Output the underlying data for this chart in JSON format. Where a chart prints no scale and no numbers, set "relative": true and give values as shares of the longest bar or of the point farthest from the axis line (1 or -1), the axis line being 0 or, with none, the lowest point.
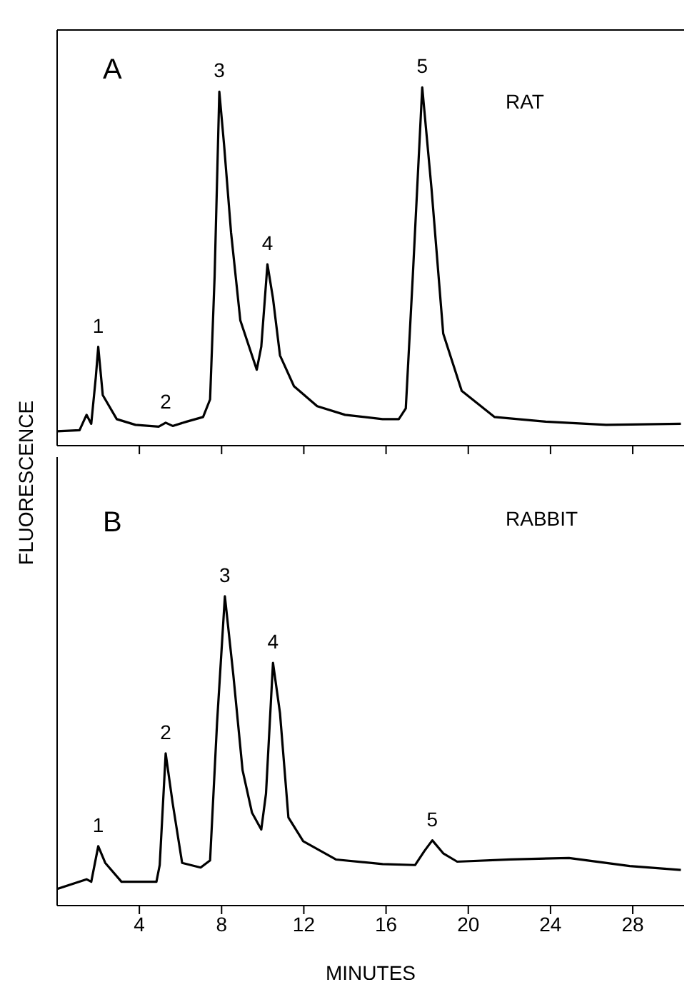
{
  "chart_data": [
    {
      "type": "line",
      "relative": true,
      "ylabel": "FLUORESCENCE",
      "xlim": [
        0,
        30.5
      ],
      "xticks": [
        {
          "value": 4,
          "label": null
        },
        {
          "value": 8,
          "label": null
        },
        {
          "value": 12,
          "label": null
        },
        {
          "value": 16,
          "label": null
        },
        {
          "value": 20,
          "label": null
        },
        {
          "value": 24,
          "label": null
        },
        {
          "value": 28,
          "label": null
        }
      ],
      "tick_labels": false,
      "marker": "none",
      "series": [
        {
          "color": "#000000",
          "x": [
            0,
            1.09,
            1.43,
            1.66,
            1.88,
            2.0,
            2.22,
            2.9,
            3.81,
            4.94,
            5.28,
            5.62,
            6.3,
            7.1,
            7.44,
            7.66,
            7.89,
            8.12,
            8.46,
            8.91,
            9.71,
            9.93,
            10.23,
            10.5,
            10.84,
            11.52,
            12.65,
            14.01,
            15.83,
            16.62,
            16.96,
            17.3,
            17.76,
            18.21,
            18.78,
            19.68,
            21.27,
            23.76,
            26.71,
            30.34
          ],
          "values": [
            0.04,
            0.043,
            0.086,
            0.061,
            0.19,
            0.276,
            0.141,
            0.074,
            0.058,
            0.053,
            0.064,
            0.055,
            0.067,
            0.08,
            0.129,
            0.472,
            0.988,
            0.84,
            0.595,
            0.35,
            0.212,
            0.276,
            0.506,
            0.411,
            0.252,
            0.166,
            0.11,
            0.086,
            0.074,
            0.074,
            0.104,
            0.472,
            1.0,
            0.718,
            0.313,
            0.153,
            0.08,
            0.067,
            0.058,
            0.061
          ]
        }
      ],
      "annotations": [
        "A",
        "RAT",
        {
          "text": "1",
          "x": 2.0,
          "y": 0.276
        },
        {
          "text": "2",
          "x": 5.28,
          "y": 0.064
        },
        {
          "text": "3",
          "x": 7.89,
          "y": 0.988
        },
        {
          "text": "4",
          "x": 10.23,
          "y": 0.506
        },
        {
          "text": "5",
          "x": 17.76,
          "y": 1.0
        }
      ]
    },
    {
      "type": "line",
      "relative": true,
      "xlabel": "MINUTES",
      "xlim": [
        0,
        30.5
      ],
      "xticks": [
        4,
        8,
        12,
        16,
        20,
        24,
        28
      ],
      "tick_labels": "x",
      "marker": "none",
      "series": [
        {
          "color": "#000000",
          "x": [
            0,
            1.43,
            1.66,
            2.0,
            2.34,
            3.13,
            4.83,
            4.99,
            5.28,
            5.62,
            6.08,
            6.98,
            7.44,
            7.78,
            8.16,
            8.57,
            9.02,
            9.48,
            9.93,
            10.16,
            10.5,
            10.84,
            11.25,
            11.97,
            13.56,
            15.83,
            17.41,
            17.87,
            18.25,
            18.78,
            19.46,
            22.06,
            24.9,
            27.85,
            30.34
          ],
          "values": [
            0.054,
            0.085,
            0.077,
            0.192,
            0.138,
            0.077,
            0.077,
            0.131,
            0.492,
            0.331,
            0.138,
            0.123,
            0.146,
            0.592,
            1.0,
            0.746,
            0.438,
            0.3,
            0.246,
            0.362,
            0.785,
            0.623,
            0.285,
            0.208,
            0.149,
            0.134,
            0.131,
            0.177,
            0.211,
            0.169,
            0.142,
            0.149,
            0.154,
            0.128,
            0.115
          ]
        }
      ],
      "annotations": [
        "B",
        "RABBIT",
        {
          "text": "1",
          "x": 2.0,
          "y": 0.192
        },
        {
          "text": "2",
          "x": 5.28,
          "y": 0.492
        },
        {
          "text": "3",
          "x": 8.16,
          "y": 1.0
        },
        {
          "text": "4",
          "x": 10.5,
          "y": 0.785
        },
        {
          "text": "5",
          "x": 18.25,
          "y": 0.211
        }
      ]
    }
  ]
}
